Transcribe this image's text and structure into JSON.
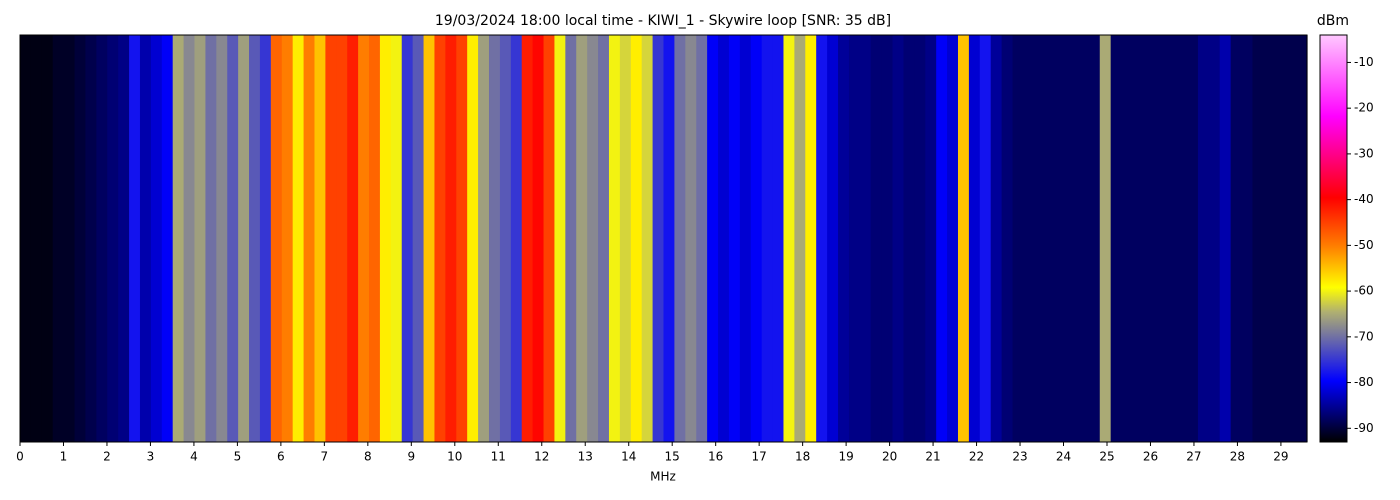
{
  "chart_data": {
    "type": "heatmap",
    "title": "19/03/2024 18:00 local time - KIWI_1 - Skywire loop [SNR: 35 dB]",
    "xlabel": "MHz",
    "colorbar_label": "dBm",
    "xlim": [
      0,
      29.6
    ],
    "xticks": [
      0,
      1,
      2,
      3,
      4,
      5,
      6,
      7,
      8,
      9,
      10,
      11,
      12,
      13,
      14,
      15,
      16,
      17,
      18,
      19,
      20,
      21,
      22,
      23,
      24,
      25,
      26,
      27,
      28,
      29
    ],
    "clim": [
      -93,
      -4
    ],
    "cticks": [
      -90,
      -80,
      -70,
      -60,
      -50,
      -40,
      -30,
      -20,
      -10
    ],
    "colorscale": [
      [
        0,
        "#000000"
      ],
      [
        0.15,
        "#0000ff"
      ],
      [
        0.32,
        "#b0b070"
      ],
      [
        0.38,
        "#ffff00"
      ],
      [
        0.48,
        "#ff8000"
      ],
      [
        0.6,
        "#ff0000"
      ],
      [
        0.8,
        "#ff00ff"
      ],
      [
        1,
        "#ffc8ff"
      ]
    ],
    "values": [
      -92,
      -92,
      -92,
      -91,
      -91,
      -90,
      -89,
      -88,
      -87,
      -86,
      -78,
      -84,
      -82,
      -80,
      -65,
      -68,
      -66,
      -70,
      -68,
      -72,
      -66,
      -72,
      -75,
      -48,
      -50,
      -58,
      -50,
      -55,
      -45,
      -45,
      -42,
      -50,
      -48,
      -58,
      -60,
      -75,
      -72,
      -55,
      -45,
      -42,
      -45,
      -58,
      -66,
      -70,
      -72,
      -75,
      -42,
      -40,
      -45,
      -60,
      -70,
      -66,
      -68,
      -70,
      -60,
      -62,
      -58,
      -62,
      -75,
      -78,
      -70,
      -68,
      -70,
      -80,
      -82,
      -80,
      -82,
      -80,
      -78,
      -78,
      -60,
      -65,
      -58,
      -78,
      -82,
      -85,
      -86,
      -86,
      -87,
      -87,
      -86,
      -87,
      -87,
      -86,
      -80,
      -82,
      -55,
      -82,
      -78,
      -85,
      -87,
      -88,
      -88,
      -88,
      -88,
      -88,
      -88,
      -88,
      -88,
      -65,
      -88,
      -88,
      -88,
      -88,
      -88,
      -88,
      -88,
      -88,
      -86,
      -86,
      -84,
      -88,
      -88,
      -89,
      -89,
      -89,
      -89,
      -89
    ]
  }
}
